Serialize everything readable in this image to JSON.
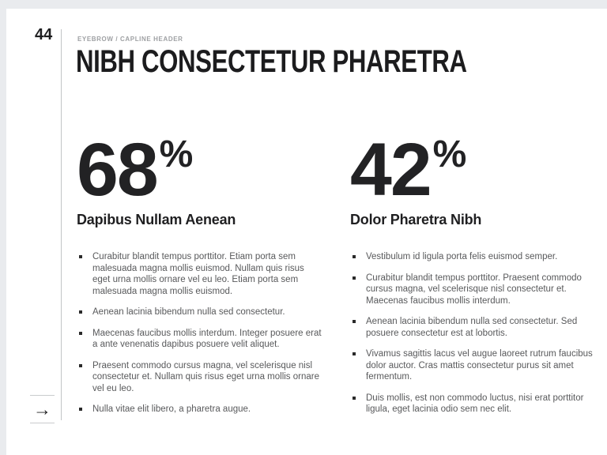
{
  "page": {
    "number": "44",
    "eyebrow": "EYEBROW / CAPLINE HEADER",
    "title": "NIBH CONSECTETUR PHARETRA"
  },
  "columns": [
    {
      "stat_value": "68",
      "stat_unit": "%",
      "heading": "Dapibus Nullam Aenean",
      "bullets": [
        "Curabitur blandit tempus porttitor. Etiam porta sem malesuada magna mollis euismod. Nullam quis risus eget urna mollis ornare vel eu leo. Etiam porta sem malesuada magna mollis euismod.",
        "Aenean lacinia bibendum nulla sed consectetur.",
        "Maecenas faucibus mollis interdum. Integer posuere erat a ante venenatis dapibus posuere velit aliquet.",
        "Praesent commodo cursus magna, vel scelerisque nisl consectetur et. Nullam quis risus eget urna mollis ornare vel eu leo.",
        "Nulla vitae elit libero, a pharetra augue."
      ]
    },
    {
      "stat_value": "42",
      "stat_unit": "%",
      "heading": "Dolor Pharetra Nibh",
      "bullets": [
        "Vestibulum id ligula porta felis euismod semper.",
        "Curabitur blandit tempus porttitor. Praesent commodo cursus magna, vel scelerisque nisl consectetur et. Maecenas faucibus mollis interdum.",
        "Aenean lacinia bibendum nulla sed consectetur. Sed posuere consectetur est at lobortis.",
        "Vivamus sagittis lacus vel augue laoreet rutrum faucibus dolor auctor. Cras mattis consectetur purus sit amet fermentum.",
        "Duis mollis, est non commodo luctus, nisi erat porttitor ligula, eget lacinia odio sem nec elit."
      ]
    }
  ],
  "nav": {
    "next_arrow": "→"
  },
  "colors": {
    "background": "#e9ebee",
    "slide": "#ffffff",
    "text_primary": "#1e1e20",
    "text_secondary": "#58595b",
    "text_muted": "#9ea0a3",
    "divider": "#c2c4c6"
  }
}
